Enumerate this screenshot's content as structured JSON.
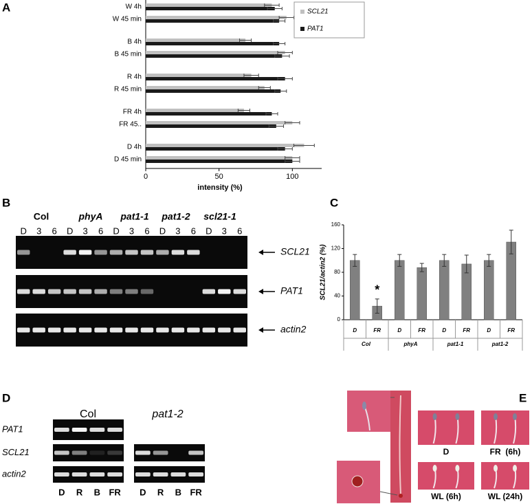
{
  "panel_labels": [
    "A",
    "B",
    "C",
    "D",
    "E"
  ],
  "chart_data": [
    {
      "type": "bar",
      "horizontal": true,
      "categories": [
        "W 4h",
        "W 45 min",
        "B 4h",
        "B 45 min",
        "R 4h",
        "R 45 min",
        "FR 4h",
        "FR 45..",
        "D 4h",
        "D 45 min"
      ],
      "series": [
        {
          "name": "SCL21",
          "color": "#c0c0c0",
          "values": [
            86,
            96,
            68,
            95,
            72,
            81,
            67,
            100,
            108,
            100
          ],
          "errors": [
            5,
            5,
            4,
            5,
            5,
            4,
            4,
            5,
            7,
            5
          ]
        },
        {
          "name": "PAT1",
          "color": "#1a1a1a",
          "values": [
            88,
            91,
            91,
            93,
            95,
            92,
            86,
            89,
            95,
            100
          ],
          "errors": [
            5,
            4,
            4,
            5,
            5,
            4,
            4,
            5,
            5,
            5
          ]
        }
      ],
      "xlabel": "intensity (%)",
      "xlim": [
        0,
        120
      ],
      "xticks": [
        0,
        50,
        100
      ],
      "legend": "right"
    },
    {
      "type": "bar",
      "horizontal": false,
      "categories": [
        "D",
        "FR",
        "D",
        "FR",
        "D",
        "FR",
        "D",
        "FR"
      ],
      "groups": [
        "Col",
        "phyA",
        "pat1-1",
        "pat1-2"
      ],
      "values": [
        100,
        23,
        100,
        88,
        100,
        94,
        100,
        131
      ],
      "errors": [
        10,
        12,
        10,
        7,
        10,
        15,
        10,
        20
      ],
      "color": "#808080",
      "ylabel": "SCL21/actin2 (%)",
      "ylim": [
        0,
        160
      ],
      "yticks": [
        0,
        40,
        80,
        120,
        160
      ],
      "annotation": "*"
    }
  ],
  "gel_b": {
    "strains": [
      "Col",
      "phyA",
      "pat1-1",
      "pat1-2",
      "scl21-1"
    ],
    "lanes": [
      "D",
      "3",
      "6",
      "D",
      "3",
      "6",
      "D",
      "3",
      "6",
      "D",
      "3",
      "6",
      "D",
      "3",
      "6"
    ],
    "genes": [
      "SCL21",
      "PAT1",
      "actin2"
    ]
  },
  "gel_d": {
    "strains": [
      "Col",
      "pat1-2"
    ],
    "genes": [
      "PAT1",
      "SCL21",
      "actin2"
    ],
    "lanes": [
      "D",
      "R",
      "B",
      "FR"
    ]
  },
  "photos_e": {
    "labels": [
      "D",
      "FR  (6h)",
      "WL (6h)",
      "WL (24h)"
    ]
  }
}
